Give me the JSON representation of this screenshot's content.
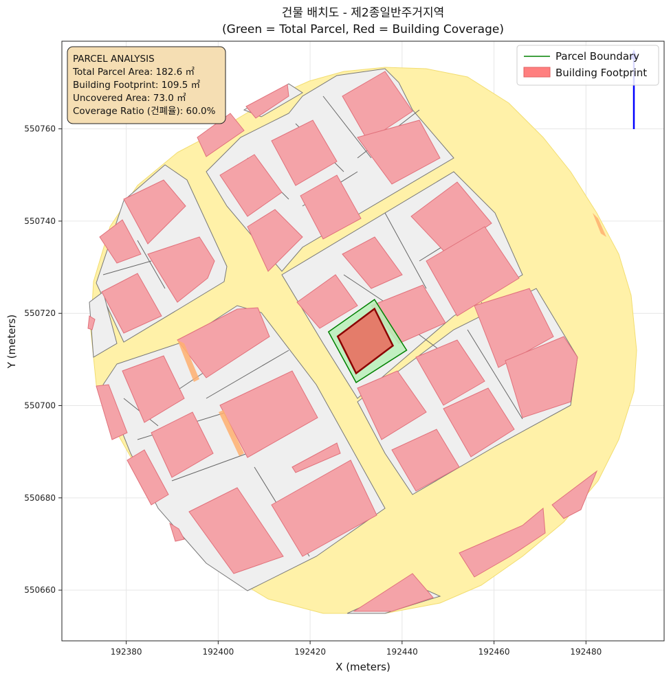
{
  "title_line1": "건물 배치도 - 제2종일반주거지역",
  "title_line2": "(Green = Total Parcel, Red = Building Coverage)",
  "analysis": {
    "header": "PARCEL ANALYSIS",
    "total": "Total Parcel Area: 182.6 ㎡",
    "footprint": "Building Footprint: 109.5 ㎡",
    "uncovered": "Uncovered Area: 73.0 ㎡",
    "coverage": "Coverage Ratio (건폐율): 60.0%"
  },
  "legend": {
    "parcel": "Parcel Boundary",
    "footprint": "Building Footprint"
  },
  "colors": {
    "parcel_line": "#008000",
    "parcel_fill": "#b8f0b8",
    "footprint_fill": "#e47c6a",
    "footprint_line": "#8b0000",
    "building_fill": "#f4a3a8",
    "road_fill": "#fff1a8",
    "block_fill": "#efefef",
    "north_arrow": "#0000ff"
  },
  "chart_data": {
    "type": "map",
    "xlabel": "X (meters)",
    "ylabel": "Y (meters)",
    "xlim": [
      192366,
      192497
    ],
    "ylim": [
      550649,
      550779
    ],
    "xticks": [
      192380,
      192400,
      192420,
      192440,
      192460,
      192480
    ],
    "yticks": [
      550660,
      550680,
      550700,
      550720,
      550740,
      550760
    ],
    "grid": true,
    "legend_position": "top-right",
    "target_parcel": [
      [
        192424,
        550716
      ],
      [
        192434,
        550723
      ],
      [
        192441,
        550712
      ],
      [
        192430,
        550705
      ]
    ],
    "target_footprint": [
      [
        192426,
        550715
      ],
      [
        192434,
        550721
      ],
      [
        192438,
        550713
      ],
      [
        192430,
        550707
      ]
    ]
  }
}
